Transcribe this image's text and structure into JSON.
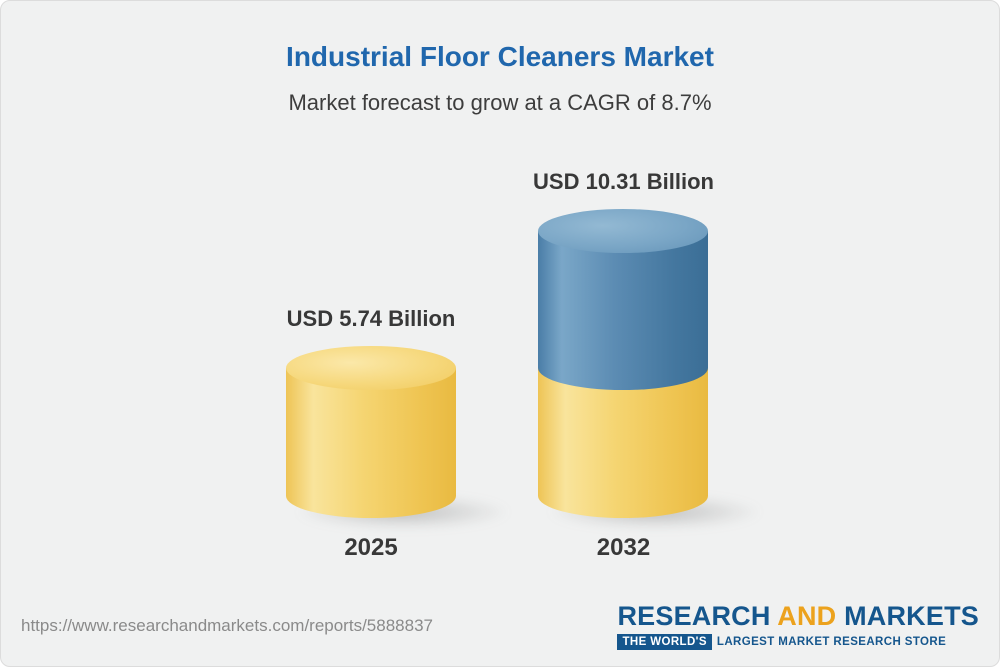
{
  "header": {
    "title": "Industrial Floor Cleaners Market",
    "subtitle": "Market forecast to grow at a CAGR of 8.7%"
  },
  "chart_data": {
    "type": "bar",
    "style": "3d-cylinder",
    "title": "Industrial Floor Cleaners Market",
    "subtitle": "Market forecast to grow at a CAGR of 8.7%",
    "cagr_percent": 8.7,
    "unit": "USD Billion",
    "categories": [
      "2025",
      "2032"
    ],
    "values": [
      5.74,
      10.31
    ],
    "value_labels": [
      "USD 5.74 Billion",
      "USD 10.31 Billion"
    ],
    "bars": [
      {
        "year": "2025",
        "value": 5.74,
        "label": "USD 5.74 Billion",
        "segments": [
          "base"
        ]
      },
      {
        "year": "2032",
        "value": 10.31,
        "label": "USD 10.31 Billion",
        "segments": [
          "growth",
          "base"
        ]
      }
    ],
    "colors": {
      "base_segment": "#f3cf66",
      "growth_segment": "#4d80ab"
    },
    "legend": "none",
    "grid": false,
    "axes": "none"
  },
  "footer": {
    "url": "https://www.researchandmarkets.com/reports/5888837",
    "logo": {
      "word1": "RESEARCH",
      "word2": "AND",
      "word3": "MARKETS",
      "tagline_box": "THE WORLD'S",
      "tagline_rest": "LARGEST MARKET RESEARCH STORE",
      "blue": "#15568d",
      "yellow": "#eca21d"
    }
  }
}
